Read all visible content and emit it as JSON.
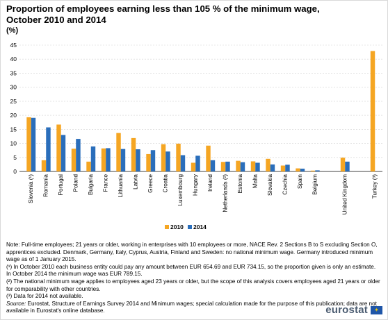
{
  "title": "Proportion of employees earning less than 105 % of the minimum wage, October 2010 and 2014",
  "unit": "(%)",
  "chart_data": {
    "type": "bar",
    "categories": [
      "Slovenia (¹)",
      "Romania",
      "Portugal",
      "Poland",
      "Bulgaria",
      "France",
      "Lithuania",
      "Latvia",
      "Greece",
      "Croatia",
      "Luxembourg",
      "Hungary",
      "Ireland",
      "Netherlands (²)",
      "Estonia",
      "Malta",
      "Slovakia",
      "Czechia",
      "Spain",
      "Belgium",
      "United Kingdom",
      "Turkey (³)"
    ],
    "group_breaks_after": [
      19,
      20
    ],
    "series": [
      {
        "name": "2010",
        "color": "#f5a623",
        "values": [
          19.3,
          4.0,
          16.7,
          8.1,
          3.5,
          8.2,
          13.7,
          11.9,
          6.2,
          9.7,
          9.9,
          3.1,
          9.2,
          3.4,
          3.8,
          3.6,
          4.5,
          2.1,
          1.1,
          0.3,
          4.9,
          42.9
        ]
      },
      {
        "name": "2014",
        "color": "#2a6ebb",
        "values": [
          19.1,
          15.7,
          13.0,
          11.6,
          8.9,
          8.3,
          8.0,
          7.9,
          7.6,
          7.1,
          5.8,
          5.6,
          4.0,
          3.5,
          3.3,
          3.1,
          2.5,
          2.4,
          1.0,
          0.4,
          3.5,
          null
        ]
      }
    ],
    "xlabel": "",
    "ylabel": "",
    "ylim": [
      0,
      45
    ],
    "yticks": [
      0,
      5,
      10,
      15,
      20,
      25,
      30,
      35,
      40,
      45
    ],
    "grid": true,
    "legend_position": "bottom-center"
  },
  "notes": {
    "main": "Note: Full-time employees; 21 years or older, working in enterprises with 10 employees or more, NACE Rev. 2 Sections B to S excluding Section O, apprentices excluded. Denmark, Germany, Italy, Cyprus, Austria, Finland and Sweden: no national minimum wage. Germany introduced minimum wage as of 1 January 2015.",
    "n1": "(¹) In October 2010 each business entity could pay any amount between EUR 654.69 and EUR 734.15, so the proportion given is only an estimate. In October 2014 the minimum wage was EUR 789.15.",
    "n2": "(²) The national minimum wage applies to employees aged 23 years or older, but the scope of this analysis covers employees aged 21 years or older for comparability with other countries.",
    "n3": "(³) Data for 2014 not available.",
    "source_label": "Source:",
    "source_text": " Eurostat, Structure of Earnings Survey 2014 and Minimum wages; special calculation made for the purpose of this publication; data are not available in Eurostat's online database."
  },
  "brand": {
    "name": "eurostat",
    "icon": "eu-flag-icon"
  }
}
